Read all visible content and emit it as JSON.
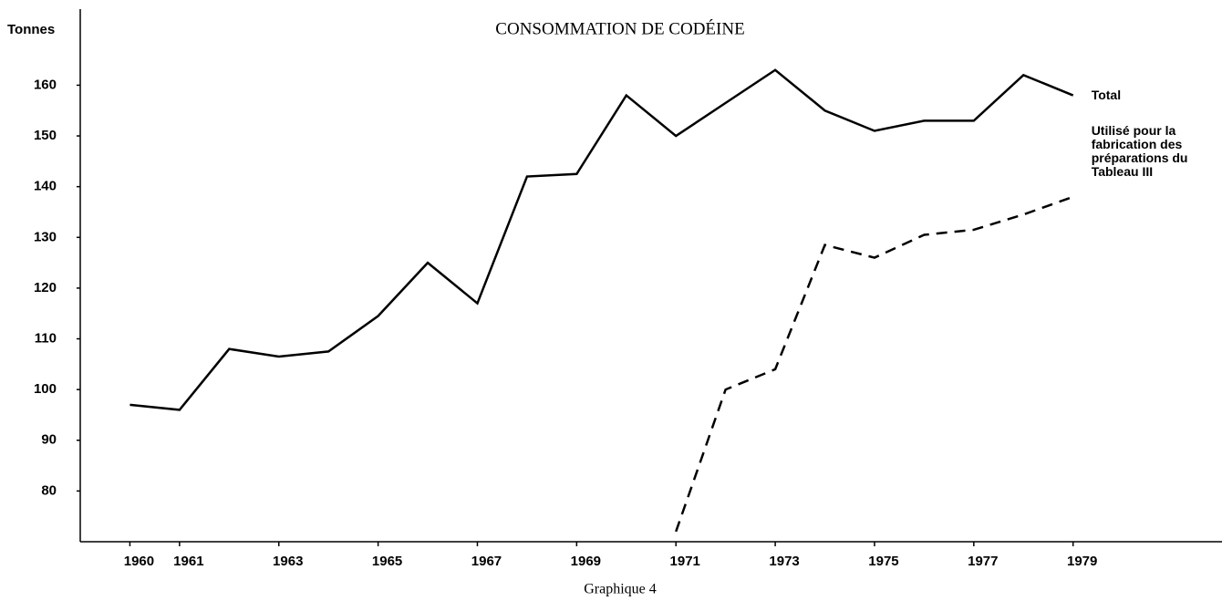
{
  "chart_data": {
    "type": "line",
    "title": "CONSOMMATION DE CODÉINE",
    "y_label": "Tonnes",
    "caption": "Graphique 4",
    "x": [
      1960,
      1961,
      1962,
      1963,
      1964,
      1965,
      1966,
      1967,
      1968,
      1969,
      1970,
      1971,
      1972,
      1973,
      1974,
      1975,
      1976,
      1977,
      1978,
      1979
    ],
    "series": [
      {
        "name": "Total",
        "color": "#000000",
        "dash": false,
        "values": [
          97,
          96,
          108,
          106.5,
          107.5,
          114.5,
          125,
          117,
          142,
          142.5,
          158,
          150,
          156.5,
          163,
          155,
          151,
          153,
          153,
          162,
          158
        ]
      },
      {
        "name": "Utilisé pour la fabrication des préparations du Tableau III",
        "color": "#000000",
        "dash": true,
        "values": [
          null,
          null,
          null,
          null,
          null,
          null,
          null,
          null,
          null,
          null,
          null,
          72,
          100,
          104,
          128.5,
          126,
          130.5,
          131.5,
          134.5,
          138
        ]
      }
    ],
    "xlim": [
      1959,
      1982
    ],
    "xticks": [
      1960,
      1961,
      1963,
      1965,
      1967,
      1969,
      1971,
      1973,
      1975,
      1977,
      1979
    ],
    "ylim": [
      70,
      175
    ],
    "yticks": [
      80,
      90,
      100,
      110,
      120,
      130,
      140,
      150,
      160
    ],
    "grid": false
  }
}
